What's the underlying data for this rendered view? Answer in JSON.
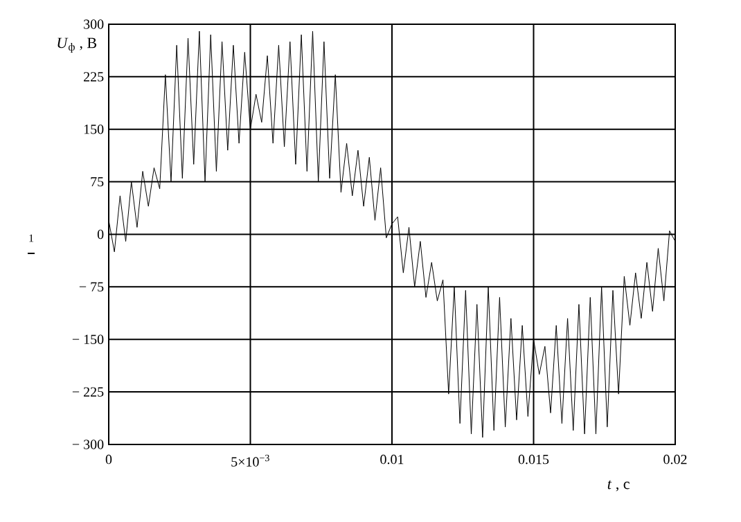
{
  "chart_data": {
    "type": "line",
    "xlabel": "*t* , с",
    "ylabel": "*U*$_{ф}$ , В",
    "x": [
      0,
      0.0002,
      0.0004,
      0.0006,
      0.0008,
      0.001,
      0.0012,
      0.0014,
      0.0016,
      0.0018,
      0.002,
      0.0022,
      0.0024,
      0.0026,
      0.0028,
      0.003,
      0.0032,
      0.0034,
      0.0036,
      0.0038,
      0.004,
      0.0042,
      0.0044,
      0.0046,
      0.0048,
      0.005,
      0.0052,
      0.0054,
      0.0056,
      0.0058,
      0.006,
      0.0062,
      0.0064,
      0.0066,
      0.0068,
      0.007,
      0.0072,
      0.0074,
      0.0076,
      0.0078,
      0.008,
      0.0082,
      0.0084,
      0.0086,
      0.0088,
      0.009,
      0.0092,
      0.0094,
      0.0096,
      0.0098,
      0.01,
      0.0102,
      0.0104,
      0.0106,
      0.0108,
      0.011,
      0.0112,
      0.0114,
      0.0116,
      0.0118,
      0.012,
      0.0122,
      0.0124,
      0.0126,
      0.0128,
      0.013,
      0.0132,
      0.0134,
      0.0136,
      0.0138,
      0.014,
      0.0142,
      0.0144,
      0.0146,
      0.0148,
      0.015,
      0.0152,
      0.0154,
      0.0156,
      0.0158,
      0.016,
      0.0162,
      0.0164,
      0.0166,
      0.0168,
      0.017,
      0.0172,
      0.0174,
      0.0176,
      0.0178,
      0.018,
      0.0182,
      0.0184,
      0.0186,
      0.0188,
      0.019,
      0.0192,
      0.0194,
      0.0196,
      0.0198,
      0.02
    ],
    "series": [
      {
        "name": "1",
        "color": "#000000",
        "values": [
          20,
          -25,
          55,
          -10,
          75,
          10,
          90,
          40,
          95,
          65,
          228,
          75,
          270,
          80,
          280,
          100,
          290,
          75,
          285,
          90,
          275,
          120,
          270,
          130,
          260,
          150,
          200,
          160,
          255,
          130,
          270,
          125,
          275,
          100,
          285,
          90,
          290,
          75,
          275,
          80,
          228,
          60,
          130,
          55,
          120,
          40,
          110,
          20,
          95,
          -5,
          15,
          25,
          -55,
          10,
          -75,
          -10,
          -90,
          -40,
          -95,
          -65,
          -228,
          -75,
          -270,
          -80,
          -285,
          -100,
          -290,
          -75,
          -280,
          -90,
          -275,
          -120,
          -265,
          -130,
          -260,
          -150,
          -200,
          -160,
          -255,
          -130,
          -270,
          -120,
          -280,
          -100,
          -285,
          -90,
          -285,
          -75,
          -275,
          -80,
          -228,
          -60,
          -130,
          -55,
          -120,
          -40,
          -110,
          -20,
          -95,
          5,
          -10
        ]
      }
    ],
    "xlim": [
      0,
      0.02
    ],
    "ylim": [
      -300,
      300
    ],
    "xticks": [
      0,
      {
        "value": 0.005,
        "label": "5×10$^{−3}$"
      },
      0.01,
      0.015,
      0.02
    ],
    "yticks": [
      {
        "value": -300,
        "label": "− 300"
      },
      {
        "value": -225,
        "label": "− 225"
      },
      {
        "value": -150,
        "label": "− 150"
      },
      {
        "value": -75,
        "label": "− 75"
      },
      0,
      75,
      150,
      225,
      300
    ],
    "grid": true,
    "legend": "left",
    "line_style": "solid",
    "marker": "none"
  }
}
